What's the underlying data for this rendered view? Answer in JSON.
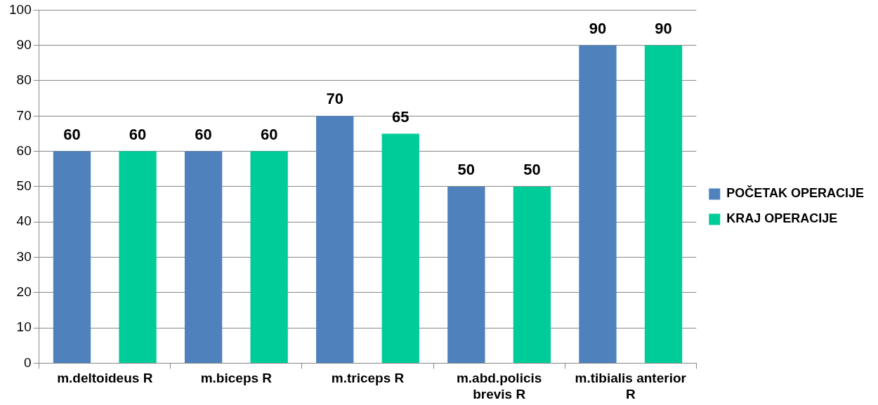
{
  "chart_data": {
    "type": "bar",
    "categories": [
      "m.deltoideus R",
      "m.biceps R",
      "m.triceps R",
      "m.abd.policis brevis R",
      "m.tibialis anterior R"
    ],
    "series": [
      {
        "name": "POČETAK OPERACIJE",
        "color": "#4f81bd",
        "values": [
          60,
          60,
          70,
          50,
          90
        ]
      },
      {
        "name": "KRAJ OPERACIJE",
        "color": "#00cc99",
        "values": [
          60,
          60,
          65,
          50,
          90
        ]
      }
    ],
    "ylim": [
      0,
      100
    ],
    "yticks": [
      0,
      10,
      20,
      30,
      40,
      50,
      60,
      70,
      80,
      90,
      100
    ],
    "grid": "y",
    "legend": "right",
    "data_labels": true
  }
}
